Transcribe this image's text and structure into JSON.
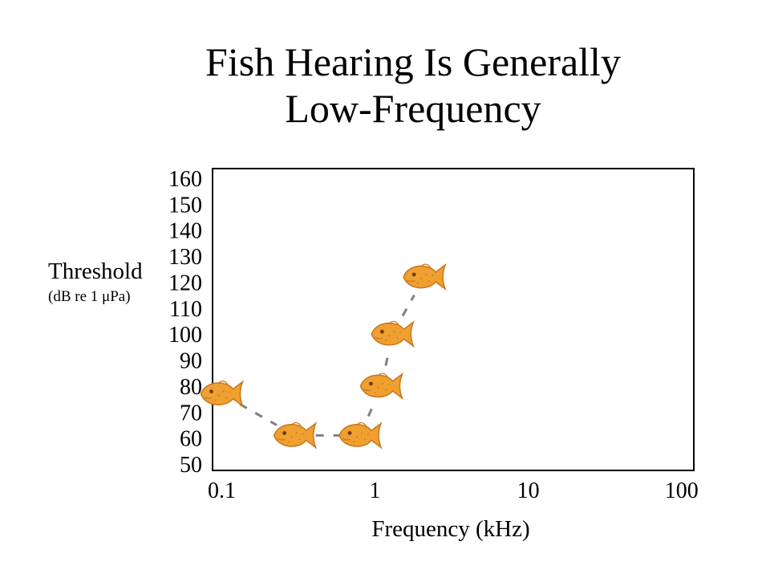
{
  "slide": {
    "title_lines": [
      "Fish Hearing Is Generally",
      "Low-Frequency"
    ]
  },
  "chart_data": {
    "type": "line",
    "title": "Fish Hearing Is Generally Low-Frequency",
    "xlabel": "Frequency (kHz)",
    "xscale": "log",
    "xlim": [
      0.1,
      100
    ],
    "xticks": [
      0.1,
      1,
      10,
      100
    ],
    "xtick_labels": [
      "0.1",
      "1",
      "10",
      "100"
    ],
    "ylabel": "Threshold",
    "ylabel_units": "(dB re 1 μPa)",
    "ylim": [
      50,
      160
    ],
    "yticks": [
      50,
      60,
      70,
      80,
      90,
      100,
      110,
      120,
      130,
      140,
      150,
      160
    ],
    "ytick_labels": [
      "50",
      "60",
      "70",
      "80",
      "90",
      "100",
      "110",
      "120",
      "130",
      "140",
      "150",
      "160"
    ],
    "grid": false,
    "marker": "goldfish-cracker",
    "line_style": "dashed",
    "colors": {
      "marker": "#F0A030",
      "marker_edge": "#C9761A",
      "line": "#808080"
    },
    "points": [
      {
        "x": 0.1,
        "y": 77
      },
      {
        "x": 0.3,
        "y": 61
      },
      {
        "x": 0.8,
        "y": 61
      },
      {
        "x": 1.1,
        "y": 80
      },
      {
        "x": 1.3,
        "y": 100
      },
      {
        "x": 2.1,
        "y": 122
      }
    ]
  }
}
